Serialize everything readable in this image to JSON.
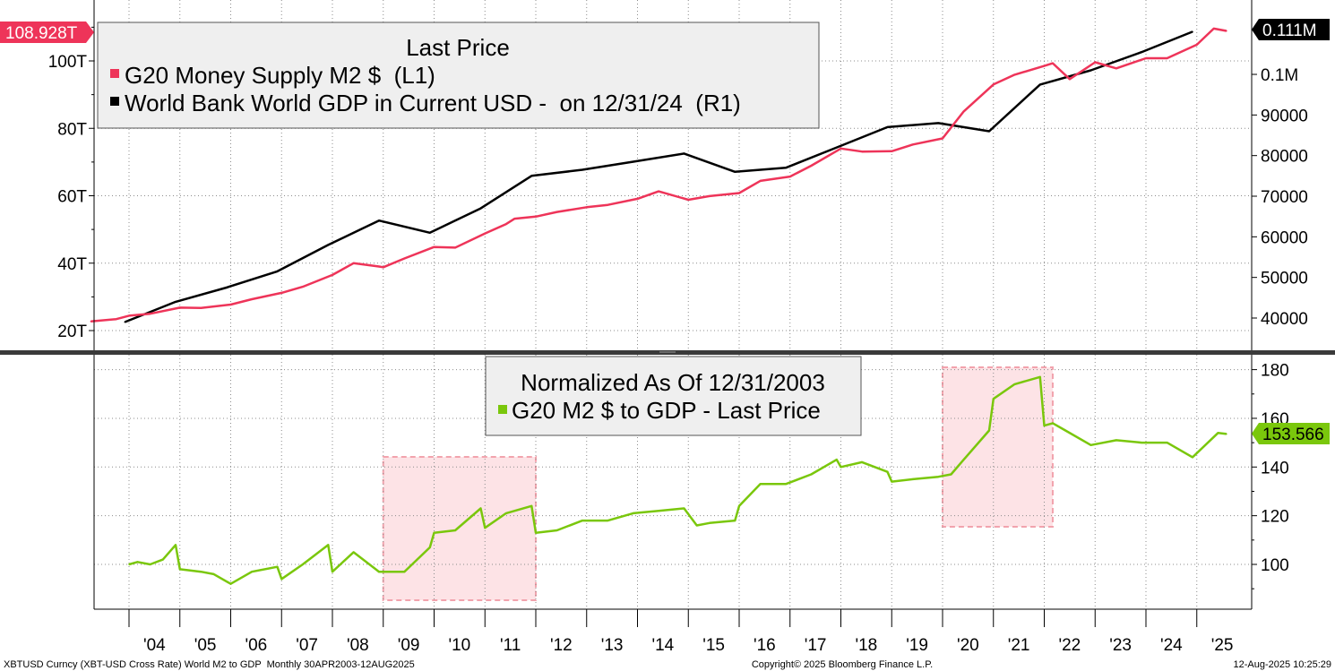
{
  "chart_data": [
    {
      "type": "line",
      "legend": {
        "title": "Last Price",
        "placement": "top-left",
        "entries": [
          {
            "label": "G20 Money Supply M2 $  (L1)",
            "color": "#ee3459"
          },
          {
            "label": "World Bank World GDP in Current USD -  on 12/31/24  (R1)",
            "color": "#000000"
          }
        ]
      },
      "left_axis": {
        "ticks": [
          {
            "value": 20,
            "label": "20T"
          },
          {
            "value": 40,
            "label": "40T"
          },
          {
            "value": 60,
            "label": "60T"
          },
          {
            "value": 80,
            "label": "80T"
          },
          {
            "value": 100,
            "label": "100T"
          }
        ],
        "last_value_label": "108.928T",
        "last_value": 108.928
      },
      "right_axis": {
        "ticks": [
          {
            "value": 40000,
            "label": "40000"
          },
          {
            "value": 50000,
            "label": "50000"
          },
          {
            "value": 60000,
            "label": "60000"
          },
          {
            "value": 70000,
            "label": "70000"
          },
          {
            "value": 80000,
            "label": "80000"
          },
          {
            "value": 90000,
            "label": "90000"
          },
          {
            "value": 100000,
            "label": "0.1M"
          }
        ],
        "last_value_label": "0.111M",
        "last_value": 111000
      },
      "series": [
        {
          "name": "G20 Money Supply M2 $  (L1)",
          "axis": "left",
          "color": "#ee3459",
          "points": [
            [
              "2003-04",
              22.7
            ],
            [
              "2003-10",
              23.4
            ],
            [
              "2004-01",
              24.4
            ],
            [
              "2004-06",
              25.0
            ],
            [
              "2005-01",
              26.8
            ],
            [
              "2005-06",
              26.7
            ],
            [
              "2006-01",
              27.7
            ],
            [
              "2006-06",
              29.3
            ],
            [
              "2007-01",
              31.2
            ],
            [
              "2007-06",
              33.0
            ],
            [
              "2008-01",
              36.5
            ],
            [
              "2008-06",
              40.0
            ],
            [
              "2008-12",
              39.0
            ],
            [
              "2009-01",
              38.8
            ],
            [
              "2009-06",
              41.4
            ],
            [
              "2010-01",
              44.8
            ],
            [
              "2010-06",
              44.6
            ],
            [
              "2011-01",
              48.8
            ],
            [
              "2011-06",
              51.6
            ],
            [
              "2011-08",
              53.2
            ],
            [
              "2012-01",
              53.8
            ],
            [
              "2012-06",
              55.2
            ],
            [
              "2013-01",
              56.6
            ],
            [
              "2013-06",
              57.3
            ],
            [
              "2014-01",
              59.1
            ],
            [
              "2014-06",
              61.3
            ],
            [
              "2015-01",
              58.8
            ],
            [
              "2015-06",
              59.9
            ],
            [
              "2016-01",
              60.8
            ],
            [
              "2016-06",
              64.4
            ],
            [
              "2017-01",
              65.7
            ],
            [
              "2017-06",
              68.9
            ],
            [
              "2018-01",
              74.0
            ],
            [
              "2018-06",
              73.1
            ],
            [
              "2019-01",
              73.2
            ],
            [
              "2019-06",
              75.2
            ],
            [
              "2020-01",
              77.0
            ],
            [
              "2020-06",
              85.0
            ],
            [
              "2021-01",
              93.0
            ],
            [
              "2021-06",
              95.9
            ],
            [
              "2022-01",
              98.5
            ],
            [
              "2022-03",
              99.3
            ],
            [
              "2022-07",
              94.6
            ],
            [
              "2023-01",
              99.6
            ],
            [
              "2023-06",
              97.8
            ],
            [
              "2024-01",
              100.8
            ],
            [
              "2024-06",
              100.8
            ],
            [
              "2025-01",
              104.8
            ],
            [
              "2025-05",
              109.6
            ],
            [
              "2025-08",
              108.9
            ]
          ]
        },
        {
          "name": "World Bank World GDP in Current USD -  on 12/31/24  (R1)",
          "axis": "right",
          "color": "#000000",
          "points": [
            [
              "2003-12",
              39000
            ],
            [
              "2004-12",
              44000
            ],
            [
              "2005-12",
              47500
            ],
            [
              "2006-12",
              51500
            ],
            [
              "2007-12",
              58000
            ],
            [
              "2008-12",
              64000
            ],
            [
              "2009-12",
              61000
            ],
            [
              "2010-12",
              67000
            ],
            [
              "2011-12",
              75000
            ],
            [
              "2012-12",
              76500
            ],
            [
              "2013-12",
              78500
            ],
            [
              "2014-12",
              80500
            ],
            [
              "2015-12",
              76000
            ],
            [
              "2016-12",
              77000
            ],
            [
              "2017-12",
              82000
            ],
            [
              "2018-12",
              87000
            ],
            [
              "2019-12",
              88000
            ],
            [
              "2020-12",
              86000
            ],
            [
              "2021-12",
              97500
            ],
            [
              "2022-12",
              101000
            ],
            [
              "2023-12",
              105500
            ],
            [
              "2024-12",
              110500
            ]
          ]
        }
      ]
    },
    {
      "type": "line",
      "legend": {
        "title": "Normalized As Of 12/31/2003",
        "placement": "top-center",
        "entries": [
          {
            "label": "G20 M2 $ to GDP - Last Price",
            "color": "#7ac70c"
          }
        ]
      },
      "right_axis": {
        "ticks": [
          {
            "value": 100,
            "label": "100"
          },
          {
            "value": 120,
            "label": "120"
          },
          {
            "value": 140,
            "label": "140"
          },
          {
            "value": 160,
            "label": "160"
          },
          {
            "value": 180,
            "label": "180"
          }
        ],
        "last_value_label": "153.566",
        "last_value": 153.566
      },
      "series": [
        {
          "name": "G20 M2 $ to GDP - Last Price",
          "color": "#7ac70c",
          "points": [
            [
              "2004-01",
              100
            ],
            [
              "2004-03",
              101
            ],
            [
              "2004-06",
              100
            ],
            [
              "2004-09",
              102
            ],
            [
              "2004-12",
              108
            ],
            [
              "2005-01",
              98
            ],
            [
              "2005-06",
              97
            ],
            [
              "2005-09",
              96
            ],
            [
              "2006-01",
              92
            ],
            [
              "2006-06",
              97
            ],
            [
              "2006-12",
              99
            ],
            [
              "2007-01",
              94
            ],
            [
              "2007-06",
              100
            ],
            [
              "2007-12",
              108
            ],
            [
              "2008-01",
              97
            ],
            [
              "2008-06",
              105
            ],
            [
              "2008-12",
              97
            ],
            [
              "2009-06",
              97
            ],
            [
              "2009-12",
              107
            ],
            [
              "2010-01",
              113
            ],
            [
              "2010-06",
              114
            ],
            [
              "2010-12",
              123
            ],
            [
              "2011-01",
              115
            ],
            [
              "2011-06",
              121
            ],
            [
              "2011-12",
              124
            ],
            [
              "2012-01",
              113
            ],
            [
              "2012-06",
              114
            ],
            [
              "2012-12",
              118
            ],
            [
              "2013-06",
              118
            ],
            [
              "2013-12",
              121
            ],
            [
              "2014-06",
              122
            ],
            [
              "2014-12",
              123
            ],
            [
              "2015-03",
              116
            ],
            [
              "2015-06",
              117
            ],
            [
              "2015-12",
              118
            ],
            [
              "2016-01",
              124
            ],
            [
              "2016-06",
              133
            ],
            [
              "2016-12",
              133
            ],
            [
              "2017-06",
              137
            ],
            [
              "2017-12",
              143
            ],
            [
              "2018-01",
              140
            ],
            [
              "2018-06",
              142
            ],
            [
              "2018-12",
              138
            ],
            [
              "2019-01",
              134
            ],
            [
              "2019-06",
              135
            ],
            [
              "2019-12",
              136
            ],
            [
              "2020-03",
              137
            ],
            [
              "2020-06",
              143
            ],
            [
              "2020-12",
              155
            ],
            [
              "2021-01",
              168
            ],
            [
              "2021-06",
              174
            ],
            [
              "2021-12",
              177
            ],
            [
              "2022-01",
              157
            ],
            [
              "2022-03",
              158
            ],
            [
              "2022-06",
              155
            ],
            [
              "2022-12",
              149
            ],
            [
              "2023-06",
              151
            ],
            [
              "2023-12",
              150
            ],
            [
              "2024-06",
              150
            ],
            [
              "2024-12",
              144
            ],
            [
              "2025-06",
              154
            ],
            [
              "2025-08",
              153.566
            ]
          ],
          "highlighted_periods": [
            {
              "start": "2009-01",
              "end": "2012-01"
            },
            {
              "start": "2020-01",
              "end": "2022-03"
            }
          ]
        }
      ]
    }
  ],
  "x_axis": {
    "labels": [
      "'04",
      "'05",
      "'06",
      "'07",
      "'08",
      "'09",
      "'10",
      "'11",
      "'12",
      "'13",
      "'14",
      "'15",
      "'16",
      "'17",
      "'18",
      "'19",
      "'20",
      "'21",
      "'22",
      "'23",
      "'24",
      "'25"
    ],
    "years": [
      2004,
      2005,
      2006,
      2007,
      2008,
      2009,
      2010,
      2011,
      2012,
      2013,
      2014,
      2015,
      2016,
      2017,
      2018,
      2019,
      2020,
      2021,
      2022,
      2023,
      2024,
      2025
    ],
    "range": [
      "2003-04",
      "2025-08"
    ]
  },
  "footer": {
    "left": "XBTUSD Curncy (XBT-USD Cross Rate) World M2 to GDP  Monthly 30APR2003-12AUG2025",
    "center": "Copyright© 2025 Bloomberg Finance L.P.",
    "right": "12-Aug-2025 10:25:29"
  },
  "colors": {
    "m2": "#ee3459",
    "gdp": "#000000",
    "ratio": "#7ac70c",
    "highlight_fill": "#fde3e6",
    "highlight_border": "#f2a3ad",
    "legend_bg": "#efefef"
  }
}
